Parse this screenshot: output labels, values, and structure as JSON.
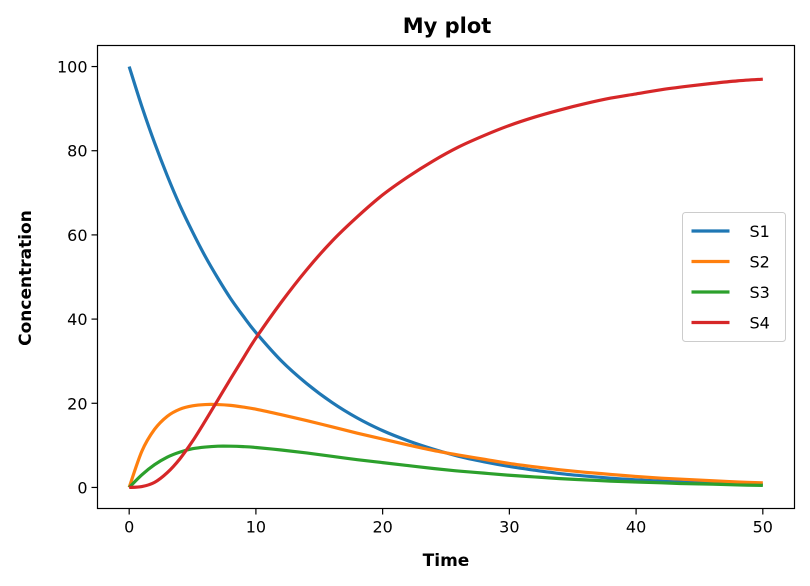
{
  "chart_data": {
    "type": "line",
    "title": "My plot",
    "xlabel": "Time",
    "ylabel": "Concentration",
    "xlim": [
      -2.5,
      52.5
    ],
    "ylim": [
      -5,
      105
    ],
    "xticks": [
      0,
      10,
      20,
      30,
      40,
      50
    ],
    "yticks": [
      0,
      20,
      40,
      60,
      80,
      100
    ],
    "grid": false,
    "legend_position": "center-right",
    "x": [
      0,
      1,
      2,
      3,
      4,
      5,
      6,
      7,
      8,
      9,
      10,
      12,
      14,
      16,
      18,
      20,
      22,
      24,
      26,
      28,
      30,
      32,
      34,
      36,
      38,
      40,
      42,
      44,
      46,
      48,
      50
    ],
    "series": [
      {
        "name": "S1",
        "color": "#1f77b4",
        "values": [
          100,
          90.5,
          81.9,
          74.1,
          67.0,
          60.7,
          54.9,
          49.7,
          44.9,
          40.7,
          36.8,
          30.1,
          24.7,
          20.2,
          16.5,
          13.5,
          11.1,
          9.1,
          7.4,
          6.1,
          5.0,
          4.1,
          3.3,
          2.7,
          2.2,
          1.8,
          1.5,
          1.2,
          1.0,
          0.8,
          0.7
        ]
      },
      {
        "name": "S2",
        "color": "#ff7f0e",
        "values": [
          0,
          8.6,
          13.8,
          16.9,
          18.6,
          19.4,
          19.7,
          19.7,
          19.5,
          19.1,
          18.6,
          17.3,
          15.9,
          14.4,
          12.9,
          11.5,
          10.1,
          8.8,
          7.7,
          6.7,
          5.7,
          4.9,
          4.2,
          3.6,
          3.1,
          2.6,
          2.2,
          1.9,
          1.6,
          1.3,
          1.1
        ]
      },
      {
        "name": "S3",
        "color": "#2ca02c",
        "values": [
          0,
          3.0,
          5.4,
          7.2,
          8.4,
          9.2,
          9.6,
          9.8,
          9.8,
          9.7,
          9.5,
          8.9,
          8.2,
          7.4,
          6.6,
          5.9,
          5.2,
          4.5,
          3.9,
          3.4,
          2.9,
          2.5,
          2.1,
          1.8,
          1.5,
          1.3,
          1.1,
          0.9,
          0.8,
          0.6,
          0.5
        ]
      },
      {
        "name": "S4",
        "color": "#d62728",
        "values": [
          0,
          0.2,
          1.2,
          3.5,
          6.8,
          11.0,
          15.8,
          20.8,
          25.8,
          30.7,
          35.5,
          44.0,
          51.7,
          58.5,
          64.3,
          69.5,
          73.8,
          77.6,
          80.9,
          83.6,
          86.0,
          88.0,
          89.7,
          91.2,
          92.5,
          93.5,
          94.5,
          95.3,
          96.0,
          96.6,
          97.0
        ]
      }
    ]
  }
}
